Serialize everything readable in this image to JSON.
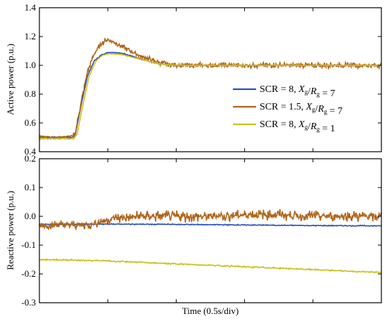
{
  "chart_data": [
    {
      "type": "line",
      "ylabel": "Active power (p.u.)",
      "xlabel": "",
      "ylim": [
        0.4,
        1.4
      ],
      "yticks": [
        "0.4",
        "0.6",
        "0.8",
        "1.0",
        "1.2",
        "1.4"
      ],
      "x_divisions": 10,
      "legend_position": "right",
      "series": [
        {
          "name": "SCR = 8, X_g/R_g = 7",
          "legend_main": "SCR = 8, ",
          "legend_x": "X",
          "legend_x_sub": "g",
          "legend_mid": "/",
          "legend_r": "R",
          "legend_r_sub": "g",
          "legend_tail": " = 7",
          "color": "#2b4fb8",
          "x": [
            0,
            0.5,
            1.0,
            1.05,
            1.2,
            1.4,
            1.6,
            1.8,
            2.0,
            2.2,
            2.5,
            3.0,
            3.5,
            4.0,
            4.5,
            5.0,
            6.0,
            7.0,
            8.0,
            9.0,
            10.0
          ],
          "y": [
            0.5,
            0.5,
            0.5,
            0.52,
            0.7,
            0.92,
            1.03,
            1.07,
            1.09,
            1.09,
            1.08,
            1.04,
            1.01,
            1.0,
            1.0,
            1.0,
            1.0,
            1.0,
            1.0,
            1.0,
            1.0
          ]
        },
        {
          "name": "SCR = 1.5, X_g/R_g = 7",
          "legend_main": "SCR = 1.5, ",
          "legend_x": "X",
          "legend_x_sub": "g",
          "legend_mid": "/",
          "legend_r": "R",
          "legend_r_sub": "g",
          "legend_tail": " = 7",
          "color": "#b0651a",
          "x": [
            0,
            0.5,
            1.0,
            1.05,
            1.2,
            1.4,
            1.6,
            1.8,
            2.0,
            2.2,
            2.5,
            3.0,
            3.5,
            4.0,
            4.5,
            5.0,
            6.0,
            7.0,
            8.0,
            9.0,
            10.0
          ],
          "y": [
            0.51,
            0.5,
            0.51,
            0.53,
            0.72,
            0.95,
            1.08,
            1.15,
            1.18,
            1.16,
            1.12,
            1.06,
            1.02,
            1.0,
            1.0,
            1.0,
            1.0,
            1.0,
            1.0,
            1.0,
            1.0
          ]
        },
        {
          "name": "SCR = 8, X_g/R_g = 1",
          "legend_main": "SCR = 8, ",
          "legend_x": "X",
          "legend_x_sub": "g",
          "legend_mid": "/",
          "legend_r": "R",
          "legend_r_sub": "g",
          "legend_tail": " = 1",
          "color": "#c9c21f",
          "x": [
            0,
            0.5,
            1.0,
            1.1,
            1.25,
            1.45,
            1.65,
            1.85,
            2.0,
            2.2,
            2.5,
            3.0,
            3.5,
            4.0,
            4.5,
            5.0,
            6.0,
            7.0,
            8.0,
            9.0,
            10.0
          ],
          "y": [
            0.49,
            0.49,
            0.49,
            0.52,
            0.7,
            0.92,
            1.03,
            1.07,
            1.08,
            1.08,
            1.07,
            1.04,
            1.01,
            1.0,
            1.0,
            1.0,
            1.0,
            1.0,
            1.0,
            1.0,
            1.0
          ]
        }
      ]
    },
    {
      "type": "line",
      "ylabel": "Reactive power (p.u.)",
      "xlabel": "Time (0.5s/div)",
      "ylim": [
        -0.3,
        0.2
      ],
      "yticks": [
        "-0.3",
        "-0.2",
        "-0.1",
        "0.0",
        "0.1",
        "0.2"
      ],
      "x_divisions": 10,
      "series": [
        {
          "name": "SCR = 8, X_g/R_g = 7",
          "color": "#2b4fb8",
          "x": [
            0,
            2.0,
            4.0,
            6.0,
            8.0,
            10.0
          ],
          "y": [
            -0.028,
            -0.027,
            -0.028,
            -0.03,
            -0.032,
            -0.033
          ]
        },
        {
          "name": "SCR = 1.5, X_g/R_g = 7",
          "color": "#b0651a",
          "x": [
            0,
            1.5,
            2.0,
            3.0,
            4.0,
            5.0,
            6.0,
            7.0,
            8.0,
            9.0,
            10.0
          ],
          "y": [
            -0.03,
            -0.03,
            -0.01,
            0.0,
            0.0,
            0.0,
            0.005,
            0.005,
            0.0,
            0.0,
            0.0
          ]
        },
        {
          "name": "SCR = 8, X_g/R_g = 1",
          "color": "#c9c21f",
          "x": [
            0,
            1.0,
            2.0,
            3.0,
            4.0,
            5.0,
            6.0,
            7.0,
            8.0,
            9.0,
            10.0
          ],
          "y": [
            -0.15,
            -0.152,
            -0.155,
            -0.16,
            -0.165,
            -0.17,
            -0.175,
            -0.18,
            -0.185,
            -0.19,
            -0.195
          ]
        }
      ]
    }
  ]
}
